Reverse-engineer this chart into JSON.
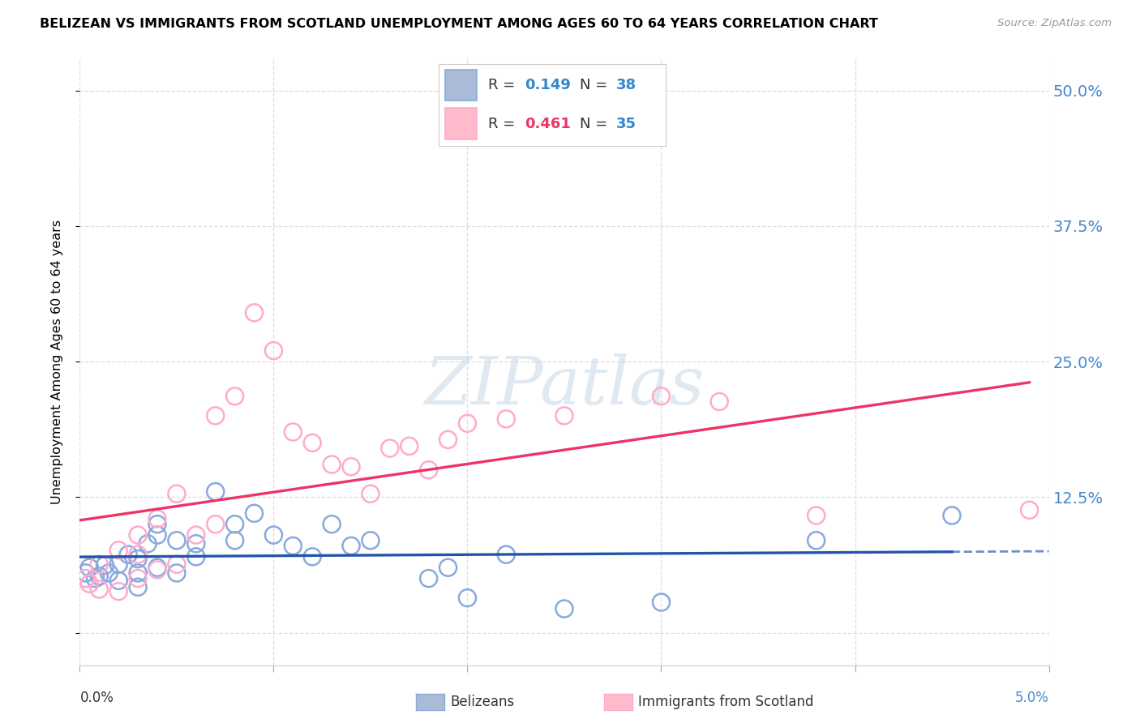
{
  "title": "BELIZEAN VS IMMIGRANTS FROM SCOTLAND UNEMPLOYMENT AMONG AGES 60 TO 64 YEARS CORRELATION CHART",
  "source": "Source: ZipAtlas.com",
  "ylabel": "Unemployment Among Ages 60 to 64 years",
  "ytick_vals": [
    0.0,
    0.125,
    0.25,
    0.375,
    0.5
  ],
  "ytick_labels": [
    "",
    "12.5%",
    "25.0%",
    "37.5%",
    "50.0%"
  ],
  "xtick_vals": [
    0.0,
    0.01,
    0.02,
    0.03,
    0.04,
    0.05
  ],
  "xlim": [
    0.0,
    0.05
  ],
  "ylim": [
    -0.03,
    0.53
  ],
  "legend_r1": "0.149",
  "legend_n1": "38",
  "legend_r2": "0.461",
  "legend_n2": "35",
  "blue_color": "#88AADD",
  "pink_color": "#FFAACC",
  "blue_line": "#2255AA",
  "pink_line": "#EE3366",
  "blue_legend_face": "#AABBD8",
  "pink_legend_face": "#FFBBCC",
  "watermark": "ZIPatlas",
  "belizean_x": [
    0.0003,
    0.0005,
    0.0008,
    0.001,
    0.0013,
    0.0015,
    0.002,
    0.002,
    0.0025,
    0.003,
    0.003,
    0.003,
    0.0035,
    0.004,
    0.004,
    0.004,
    0.005,
    0.005,
    0.006,
    0.006,
    0.007,
    0.008,
    0.008,
    0.009,
    0.01,
    0.011,
    0.012,
    0.013,
    0.014,
    0.015,
    0.018,
    0.019,
    0.02,
    0.022,
    0.025,
    0.03,
    0.038,
    0.045
  ],
  "belizean_y": [
    0.055,
    0.06,
    0.05,
    0.052,
    0.062,
    0.055,
    0.048,
    0.063,
    0.072,
    0.042,
    0.055,
    0.068,
    0.082,
    0.06,
    0.09,
    0.1,
    0.055,
    0.085,
    0.07,
    0.082,
    0.13,
    0.085,
    0.1,
    0.11,
    0.09,
    0.08,
    0.07,
    0.1,
    0.08,
    0.085,
    0.05,
    0.06,
    0.032,
    0.072,
    0.022,
    0.028,
    0.085,
    0.108
  ],
  "scotland_x": [
    0.0003,
    0.0005,
    0.001,
    0.001,
    0.002,
    0.002,
    0.003,
    0.003,
    0.003,
    0.004,
    0.004,
    0.005,
    0.005,
    0.006,
    0.007,
    0.007,
    0.008,
    0.009,
    0.01,
    0.011,
    0.012,
    0.013,
    0.014,
    0.015,
    0.016,
    0.017,
    0.018,
    0.019,
    0.02,
    0.022,
    0.025,
    0.03,
    0.033,
    0.038,
    0.049
  ],
  "scotland_y": [
    0.05,
    0.045,
    0.04,
    0.063,
    0.038,
    0.076,
    0.05,
    0.09,
    0.072,
    0.105,
    0.058,
    0.063,
    0.128,
    0.09,
    0.2,
    0.1,
    0.218,
    0.295,
    0.26,
    0.185,
    0.175,
    0.155,
    0.153,
    0.128,
    0.17,
    0.172,
    0.15,
    0.178,
    0.193,
    0.197,
    0.2,
    0.218,
    0.213,
    0.108,
    0.113
  ]
}
